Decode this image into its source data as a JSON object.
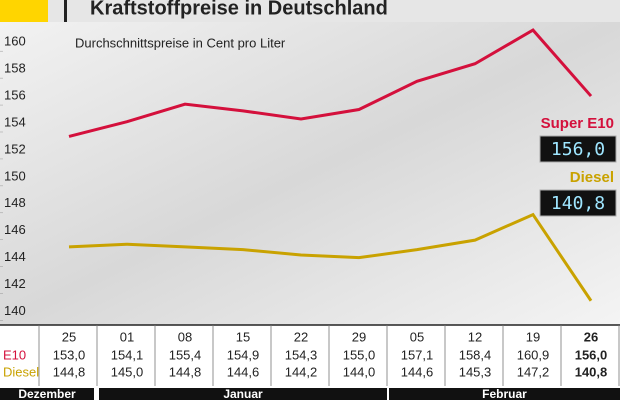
{
  "chart_data": {
    "type": "line",
    "title": "Kraftstoffpreise in Deutschland",
    "subtitle": "Durchschnittspreise in Cent pro Liter",
    "categories": [
      "25",
      "01",
      "08",
      "15",
      "22",
      "29",
      "05",
      "12",
      "19",
      "26"
    ],
    "months": [
      "Dezember",
      "Januar",
      "Februar"
    ],
    "table_row_labels": [
      "E10",
      "Diesel"
    ],
    "series": [
      {
        "name": "Super E10",
        "color": "#d4103c",
        "values": [
          153.0,
          154.1,
          155.4,
          154.9,
          154.3,
          155.0,
          157.1,
          158.4,
          160.9,
          156.0
        ],
        "value_labels": [
          "153,0",
          "154,1",
          "155,4",
          "154,9",
          "154,3",
          "155,0",
          "157,1",
          "158,4",
          "160,9",
          "156,0"
        ]
      },
      {
        "name": "Diesel",
        "color": "#c9a200",
        "values": [
          144.8,
          145.0,
          144.8,
          144.6,
          144.2,
          144.0,
          144.6,
          145.3,
          147.2,
          140.8
        ],
        "value_labels": [
          "144,8",
          "145,0",
          "144,8",
          "144,6",
          "144,2",
          "144,0",
          "144,6",
          "145,3",
          "147,2",
          "140,8"
        ]
      }
    ],
    "ylim": [
      139,
      161.5
    ],
    "yticks": [
      140,
      142,
      144,
      146,
      148,
      150,
      152,
      154,
      156,
      158,
      160
    ]
  }
}
